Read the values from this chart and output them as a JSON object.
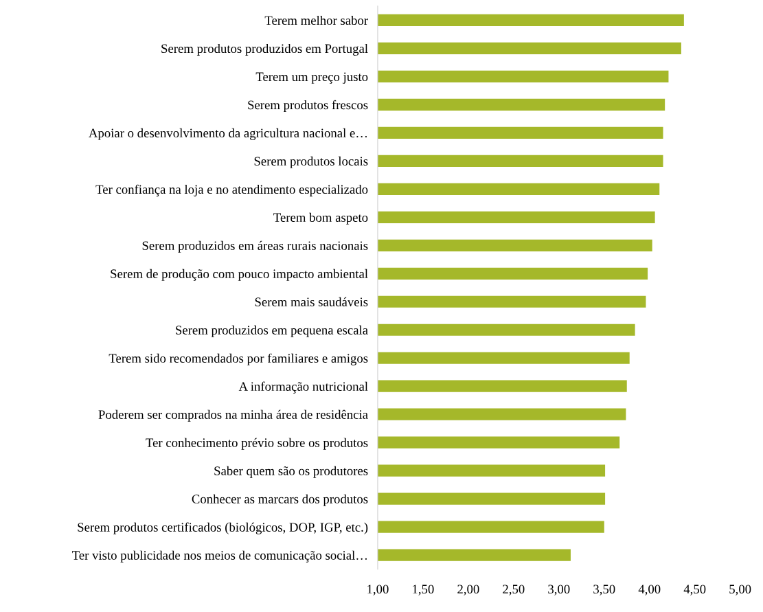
{
  "chart_data": {
    "type": "bar",
    "orientation": "horizontal",
    "categories": [
      "Terem melhor sabor",
      "Serem produtos produzidos em Portugal",
      "Terem um preço justo",
      "Serem produtos frescos",
      "Apoiar o desenvolvimento da agricultura nacional e…",
      "Serem produtos locais",
      "Ter confiança na loja e no atendimento especializado",
      "Terem bom aspeto",
      "Serem produzidos em áreas rurais nacionais",
      "Serem de produção com pouco impacto ambiental",
      "Serem mais saudáveis",
      "Serem produzidos em pequena escala",
      "Terem sido recomendados por familiares e amigos",
      "A informação nutricional",
      "Poderem ser comprados na minha área de residência",
      "Ter conhecimento prévio sobre os produtos",
      "Saber quem são os produtores",
      "Conhecer as marcars dos produtos",
      "Serem produtos certificados (biológicos, DOP, IGP, etc.)",
      "Ter visto publicidade nos meios de comunicação social…"
    ],
    "values": [
      4.38,
      4.35,
      4.21,
      4.17,
      4.15,
      4.15,
      4.11,
      4.06,
      4.03,
      3.98,
      3.96,
      3.84,
      3.78,
      3.75,
      3.74,
      3.67,
      3.51,
      3.51,
      3.5,
      3.13
    ],
    "color": "#a5b82a",
    "xlim": [
      1,
      5
    ],
    "xticks": [
      {
        "value": 1,
        "label": "1,00"
      },
      {
        "value": 1.5,
        "label": "1,50"
      },
      {
        "value": 2,
        "label": "2,00"
      },
      {
        "value": 2.5,
        "label": "2,50"
      },
      {
        "value": 3,
        "label": "3,00"
      },
      {
        "value": 3.5,
        "label": "3,50"
      },
      {
        "value": 4,
        "label": "4,00"
      },
      {
        "value": 4.5,
        "label": "4,50"
      },
      {
        "value": 5,
        "label": "5,00"
      }
    ],
    "grid": false,
    "legend": false
  }
}
